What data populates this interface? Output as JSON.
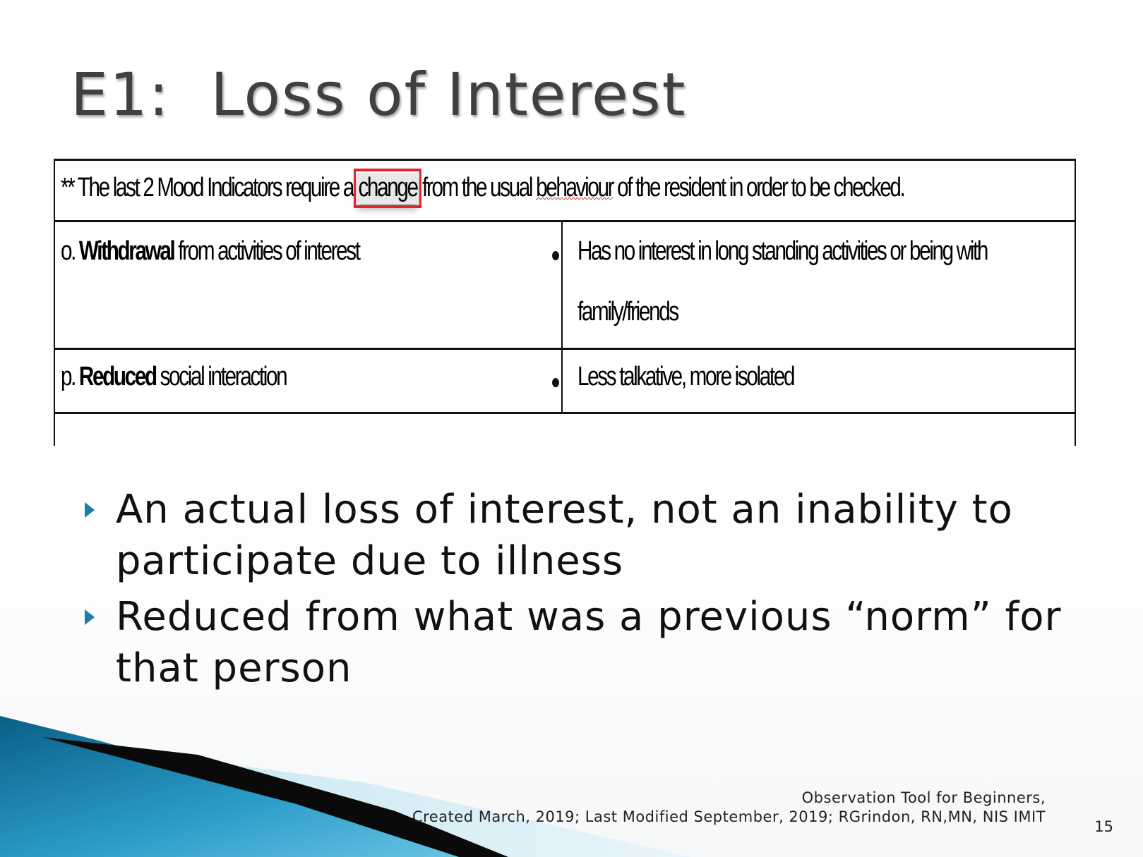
{
  "slide": {
    "title": "E1:  Loss of Interest",
    "page_number": "15"
  },
  "table": {
    "header_parts": {
      "before": "** The last 2 Mood Indicators require a ",
      "highlight": "change",
      "middle": " from the usual ",
      "misspelled": "behaviour",
      "after": " of the resident in order to be checked."
    },
    "rows": [
      {
        "letter": "o. ",
        "bold": "Withdrawal",
        "rest": " from activities of interest",
        "bullet_line1": "Has no interest in long standing activities or being with",
        "bullet_line2": "family/friends"
      },
      {
        "letter": "p. ",
        "bold": "Reduced",
        "rest": " social interaction",
        "bullet_line1": "Less talkative, more isolated"
      }
    ]
  },
  "bullets": [
    "An actual loss of interest, not an inability to participate due to illness",
    "Reduced from what was a previous “norm” for that person"
  ],
  "footer": {
    "line1": "Observation Tool for Beginners,",
    "line2": "Created March, 2019; Last  Modified September, 2019;  RGrindon, RN,MN, NIS IMIT"
  },
  "colors": {
    "accent": "#1a7fa8",
    "highlight_border": "#e0242c",
    "title_text": "#404040"
  }
}
